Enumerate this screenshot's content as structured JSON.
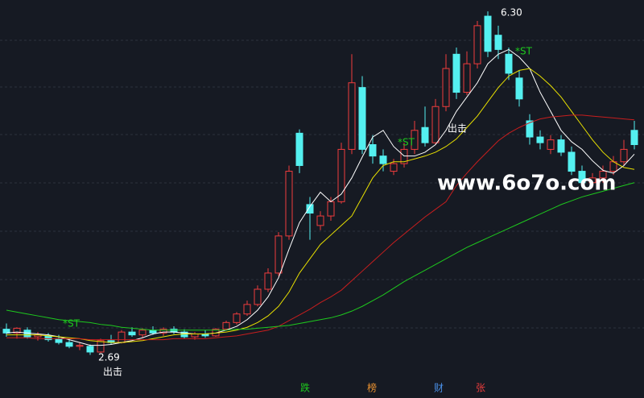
{
  "chart_data": {
    "type": "candlestick",
    "open": [
      2.96,
      2.92,
      2.95,
      2.88,
      2.89,
      2.86,
      2.82,
      2.78,
      2.78,
      2.72,
      2.84,
      2.82,
      2.93,
      2.9,
      2.95,
      2.92,
      2.96,
      2.93,
      2.88,
      2.91,
      2.89,
      2.96,
      3.03,
      3.12,
      3.22,
      3.38,
      3.55,
      3.94,
      5.02,
      4.27,
      4.05,
      4.15,
      4.3,
      4.85,
      5.5,
      4.9,
      4.78,
      4.62,
      4.7,
      4.85,
      5.08,
      4.92,
      5.3,
      5.85,
      5.45,
      5.75,
      6.25,
      6.05,
      5.85,
      5.6,
      5.15,
      4.98,
      4.85,
      4.95,
      4.82,
      4.62,
      4.5,
      4.55,
      4.62,
      4.72,
      5.05
    ],
    "high": [
      3.02,
      2.98,
      2.98,
      2.93,
      2.92,
      2.9,
      2.86,
      2.82,
      2.8,
      2.86,
      2.9,
      2.95,
      2.98,
      2.97,
      2.99,
      2.98,
      2.99,
      2.96,
      2.93,
      2.95,
      2.97,
      3.05,
      3.14,
      3.26,
      3.42,
      3.6,
      3.98,
      4.68,
      5.06,
      4.35,
      4.2,
      4.35,
      4.92,
      5.85,
      5.62,
      5.0,
      4.85,
      4.75,
      4.92,
      5.15,
      5.3,
      5.38,
      5.85,
      5.92,
      5.88,
      6.2,
      6.3,
      6.15,
      5.92,
      5.68,
      5.22,
      5.05,
      5.0,
      5.0,
      4.88,
      4.68,
      4.6,
      4.68,
      4.78,
      4.95,
      5.15
    ],
    "low": [
      2.88,
      2.86,
      2.86,
      2.84,
      2.83,
      2.8,
      2.76,
      2.74,
      2.69,
      2.71,
      2.8,
      2.81,
      2.88,
      2.87,
      2.9,
      2.89,
      2.91,
      2.86,
      2.85,
      2.87,
      2.88,
      2.95,
      3.01,
      3.1,
      3.2,
      3.35,
      3.52,
      3.9,
      4.6,
      3.9,
      4.0,
      4.1,
      4.28,
      4.8,
      4.8,
      4.7,
      4.62,
      4.58,
      4.66,
      4.8,
      4.88,
      4.9,
      5.25,
      5.38,
      5.42,
      5.7,
      5.82,
      5.8,
      5.58,
      5.3,
      4.9,
      4.85,
      4.8,
      4.78,
      4.58,
      4.45,
      4.45,
      4.5,
      4.58,
      4.68,
      4.85
    ],
    "close": [
      2.92,
      2.97,
      2.88,
      2.9,
      2.85,
      2.82,
      2.78,
      2.79,
      2.72,
      2.84,
      2.82,
      2.93,
      2.9,
      2.95,
      2.92,
      2.96,
      2.93,
      2.88,
      2.91,
      2.89,
      2.96,
      3.03,
      3.12,
      3.22,
      3.38,
      3.55,
      3.94,
      4.62,
      4.68,
      4.18,
      4.15,
      4.3,
      4.85,
      5.55,
      4.85,
      4.78,
      4.7,
      4.7,
      4.85,
      5.05,
      4.92,
      5.3,
      5.7,
      5.45,
      5.75,
      6.15,
      5.88,
      5.9,
      5.65,
      5.38,
      4.98,
      4.92,
      4.95,
      4.82,
      4.62,
      4.5,
      4.55,
      4.62,
      4.72,
      4.85,
      4.9
    ],
    "up_color": "#f03c3c",
    "down_color": "#54f0f0",
    "series": [
      {
        "color": "#ffffff",
        "values": [
          2.92,
          2.93,
          2.92,
          2.91,
          2.9,
          2.88,
          2.85,
          2.82,
          2.79,
          2.79,
          2.8,
          2.82,
          2.84,
          2.87,
          2.91,
          2.93,
          2.93,
          2.92,
          2.91,
          2.91,
          2.92,
          2.95,
          2.99,
          3.06,
          3.16,
          3.3,
          3.5,
          3.8,
          4.08,
          4.25,
          4.4,
          4.3,
          4.38,
          4.55,
          4.77,
          4.98,
          5.05,
          4.88,
          4.78,
          4.78,
          4.82,
          4.9,
          5.05,
          5.25,
          5.4,
          5.55,
          5.75,
          5.85,
          5.9,
          5.82,
          5.7,
          5.45,
          5.25,
          5.05,
          4.93,
          4.85,
          4.73,
          4.63,
          4.6,
          4.68,
          4.8
        ]
      },
      {
        "color": "#e8e000",
        "values": [
          2.9,
          2.9,
          2.9,
          2.9,
          2.89,
          2.88,
          2.87,
          2.86,
          2.84,
          2.83,
          2.82,
          2.82,
          2.83,
          2.84,
          2.86,
          2.88,
          2.9,
          2.91,
          2.91,
          2.91,
          2.92,
          2.93,
          2.95,
          2.98,
          3.03,
          3.1,
          3.2,
          3.35,
          3.55,
          3.7,
          3.85,
          3.95,
          4.05,
          4.15,
          4.35,
          4.55,
          4.68,
          4.72,
          4.72,
          4.75,
          4.78,
          4.82,
          4.88,
          4.96,
          5.08,
          5.2,
          5.35,
          5.5,
          5.62,
          5.68,
          5.7,
          5.62,
          5.52,
          5.4,
          5.25,
          5.1,
          4.95,
          4.82,
          4.72,
          4.66,
          4.64
        ]
      },
      {
        "color": "#c81e1e",
        "values": [
          2.87,
          2.87,
          2.87,
          2.86,
          2.86,
          2.86,
          2.86,
          2.86,
          2.85,
          2.85,
          2.85,
          2.85,
          2.85,
          2.85,
          2.85,
          2.85,
          2.86,
          2.86,
          2.86,
          2.86,
          2.87,
          2.88,
          2.89,
          2.91,
          2.93,
          2.95,
          2.99,
          3.05,
          3.11,
          3.17,
          3.24,
          3.3,
          3.37,
          3.47,
          3.57,
          3.67,
          3.77,
          3.87,
          3.96,
          4.05,
          4.14,
          4.22,
          4.3,
          4.47,
          4.6,
          4.72,
          4.83,
          4.94,
          5.02,
          5.08,
          5.13,
          5.17,
          5.19,
          5.2,
          5.21,
          5.21,
          5.2,
          5.19,
          5.18,
          5.17,
          5.16
        ]
      },
      {
        "color": "#1ec81e",
        "values": [
          3.16,
          3.14,
          3.12,
          3.1,
          3.08,
          3.06,
          3.05,
          3.04,
          3.03,
          3.01,
          3.0,
          2.98,
          2.97,
          2.96,
          2.95,
          2.95,
          2.95,
          2.95,
          2.95,
          2.95,
          2.95,
          2.95,
          2.96,
          2.96,
          2.97,
          2.98,
          2.99,
          3.0,
          3.02,
          3.04,
          3.06,
          3.08,
          3.11,
          3.15,
          3.2,
          3.26,
          3.32,
          3.39,
          3.46,
          3.52,
          3.58,
          3.64,
          3.7,
          3.76,
          3.82,
          3.87,
          3.92,
          3.97,
          4.02,
          4.07,
          4.12,
          4.17,
          4.22,
          4.27,
          4.31,
          4.35,
          4.38,
          4.41,
          4.44,
          4.47,
          4.5
        ]
      }
    ],
    "ylim": [
      2.44,
      6.42
    ],
    "annotations": [
      "6.30",
      "2.69",
      "*ST",
      "*ST",
      "*ST",
      "出击",
      "出击"
    ],
    "watermark": "www.6o7o.com"
  },
  "tabs": [
    "跌",
    "榜",
    "财",
    "张"
  ]
}
